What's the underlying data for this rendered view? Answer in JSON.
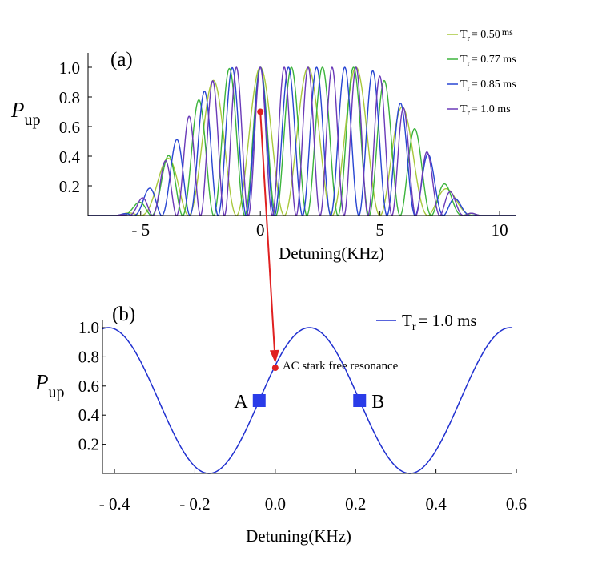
{
  "chart_data": [
    {
      "panel_label": "(a)",
      "type": "line",
      "xlabel": "Detuning(KHz)",
      "ylabel": "P",
      "ylabel_sub": "up",
      "xlim": [
        -7.2,
        10.7
      ],
      "ylim": [
        0,
        1.0
      ],
      "xticks": [
        "- 5",
        "0",
        "5",
        "10"
      ],
      "xtick_values": [
        -5,
        0,
        5,
        10
      ],
      "yticks": [
        "0.2",
        "0.4",
        "0.6",
        "0.8",
        "1.0"
      ],
      "ytick_values": [
        0.2,
        0.4,
        0.6,
        0.8,
        1.0
      ],
      "envelope": {
        "center": 1.6,
        "flat_half_width": 2.6,
        "fall_half_width": 7.7
      },
      "series": [
        {
          "name": "Tr = 0.50 ms",
          "label_main": "T",
          "label_sub": "r",
          "label_rest": "= 0.50",
          "label_unit": "ms",
          "tr_ms": 0.5,
          "color": "#a8c83c"
        },
        {
          "name": "Tr = 0.77 ms",
          "label_main": "T",
          "label_sub": "r",
          "label_rest": "= 0.77 ms",
          "tr_ms": 0.77,
          "color": "#3cb43c"
        },
        {
          "name": "Tr = 0.85 ms",
          "label_main": "T",
          "label_sub": "r",
          "label_rest": "= 0.85 ms",
          "tr_ms": 0.85,
          "color": "#2846d2"
        },
        {
          "name": "Tr = 1.0 ms",
          "label_main": "T",
          "label_sub": "r",
          "label_rest": "= 1.0 ms",
          "tr_ms": 1.0,
          "color": "#6a3ab8"
        }
      ],
      "marker": {
        "x": 0,
        "y": 0.7,
        "color": "#e02020"
      }
    },
    {
      "panel_label": "(b)",
      "type": "line",
      "xlabel": "Detuning(KHz)",
      "ylabel": "P",
      "ylabel_sub": "up",
      "xlim": [
        -0.43,
        0.59
      ],
      "ylim": [
        0,
        1.0
      ],
      "xticks": [
        "- 0.4",
        "- 0.2",
        "0.0",
        "0.2",
        "0.4",
        "0.6"
      ],
      "xtick_values": [
        -0.4,
        -0.2,
        0.0,
        0.2,
        0.4,
        0.6
      ],
      "yticks": [
        "0.2",
        "0.4",
        "0.6",
        "0.8",
        "1.0"
      ],
      "ytick_values": [
        0.2,
        0.4,
        0.6,
        0.8,
        1.0
      ],
      "series": [
        {
          "name": "Tr = 1.0 ms",
          "label_main": "T",
          "label_sub": "r",
          "label_rest": "= 1.0 ms",
          "period_khz": 0.5,
          "peak_x": 0.085,
          "color": "#2030d0"
        }
      ],
      "annotation": {
        "text": "AC stark free resonance",
        "x": 0.0,
        "y": 0.725,
        "color": "#e02020"
      },
      "points": [
        {
          "label": "A",
          "x": -0.04,
          "y": 0.5,
          "color": "#2a3ce8"
        },
        {
          "label": "B",
          "x": 0.21,
          "y": 0.5,
          "color": "#2a3ce8"
        }
      ]
    }
  ]
}
